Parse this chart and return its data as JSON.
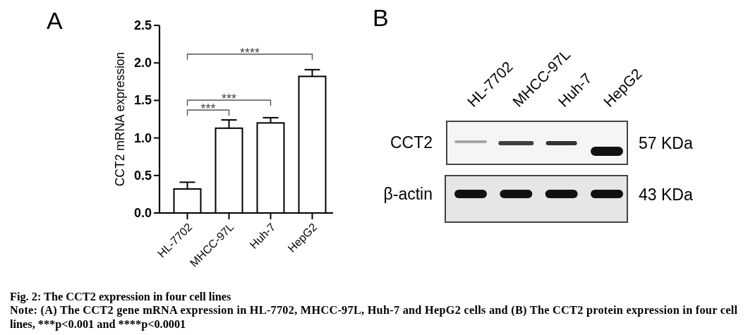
{
  "chart_data": [
    {
      "type": "bar",
      "title": "A",
      "ylabel": "CCT2 mRNA expression",
      "categories": [
        "HL-7702",
        "MHCC-97L",
        "Huh-7",
        "HepG2"
      ],
      "values": [
        0.32,
        1.13,
        1.2,
        1.82
      ],
      "errors": [
        [
          0.32,
          0.41
        ],
        [
          1.13,
          1.24
        ],
        [
          1.2,
          1.27
        ],
        [
          1.82,
          1.91
        ]
      ],
      "color": "#ffffff",
      "ylim": [
        0,
        2.5
      ],
      "yticks": [
        {
          "value": 0,
          "label": "0.0"
        },
        0.5,
        {
          "value": 1,
          "label": "1.0"
        },
        1.5,
        {
          "value": 2,
          "label": "2.0"
        },
        2.5
      ],
      "annotations": [
        "****",
        "***",
        "***"
      ]
    },
    {
      "type": "other",
      "title": "B",
      "categories": [
        "HL-7702",
        "MHCC-97L",
        "Huh-7",
        "HepG2"
      ],
      "y_categories": [
        "CCT2",
        "β-actin"
      ],
      "y2_categories": [
        "57 KDa",
        "43 KDa"
      ]
    },
    {
      "type": "other",
      "title": "Fig. 2: The CCT2 expression in four cell lines",
      "annotations": [
        "Note: (A) The CCT2 gene mRNA expression in HL-7702, MHCC-97L, Huh-7 and HepG2 cells and (B) The CCT2 protein expression in four cell lines, ***p<0.001 and ****p<0.0001"
      ]
    }
  ]
}
